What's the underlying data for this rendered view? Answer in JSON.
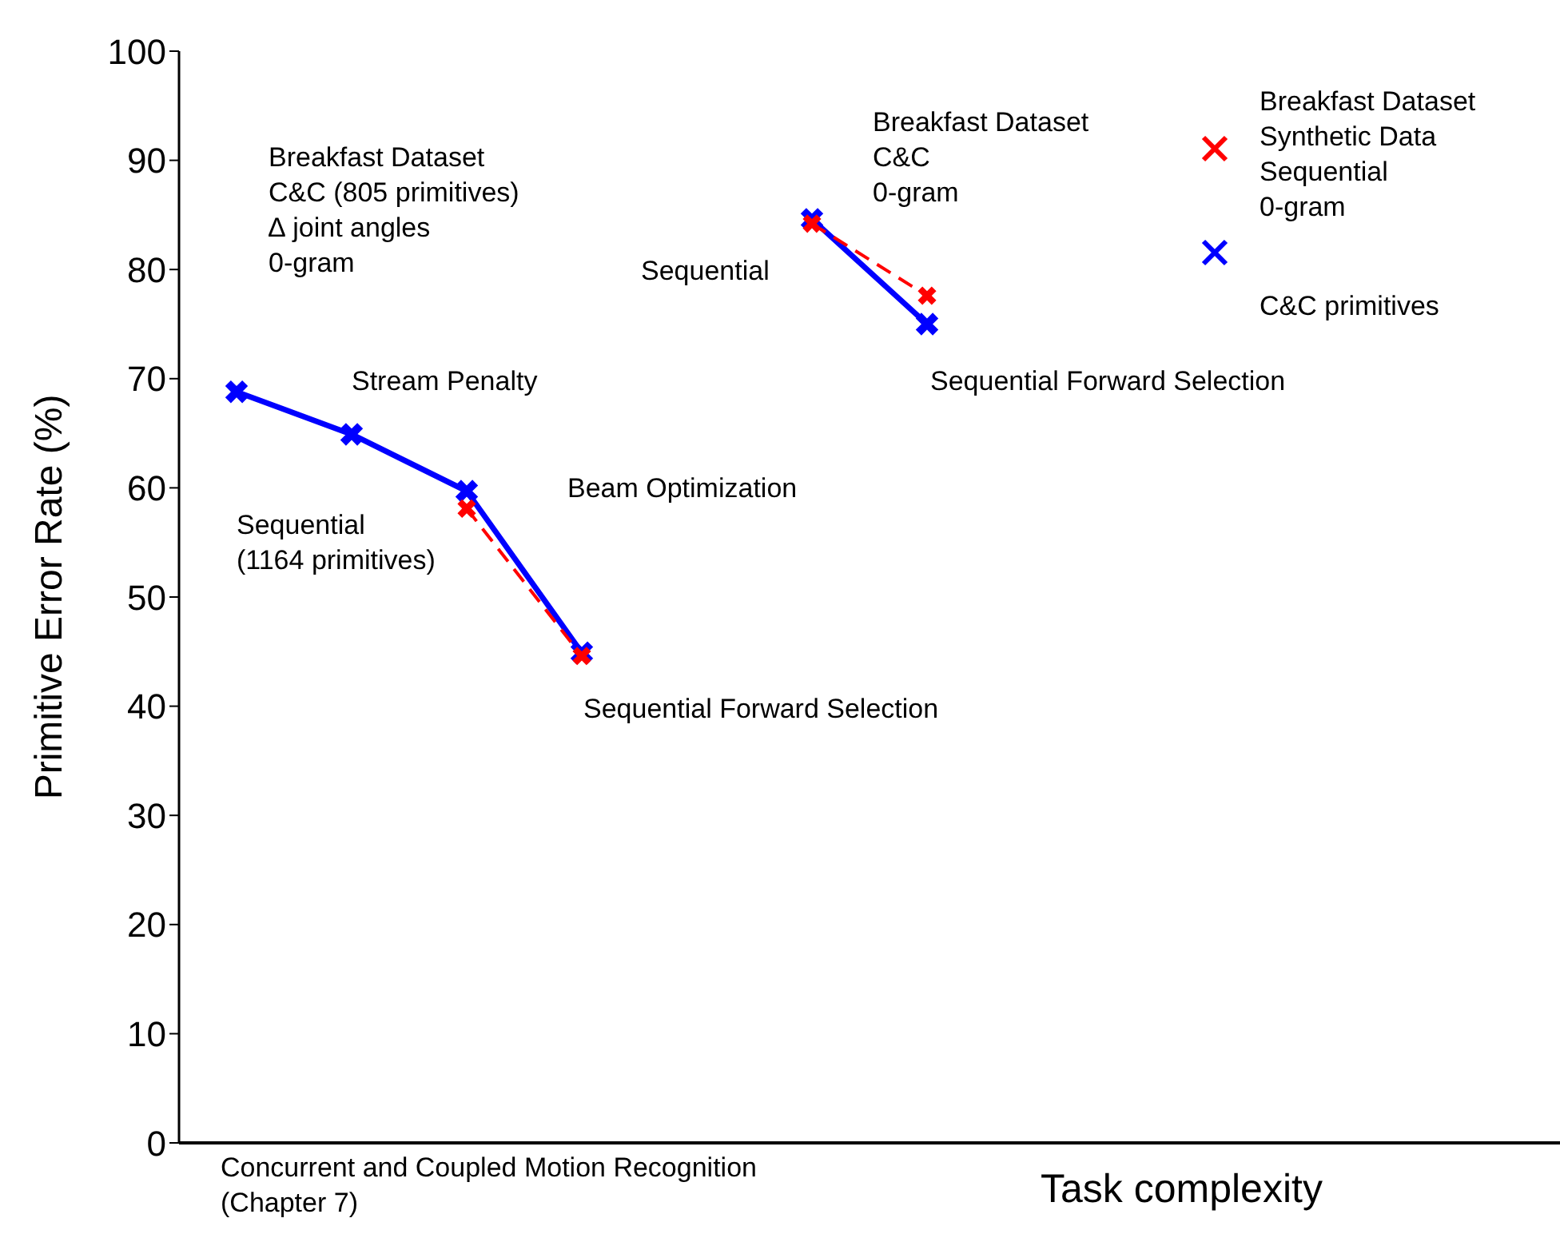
{
  "chart_data": {
    "type": "line",
    "xlabel": "Task complexity",
    "ylabel": "Primitive Error Rate (%)",
    "categories": [
      null,
      null,
      null,
      null,
      null,
      null,
      null,
      null,
      null,
      null,
      null,
      null
    ],
    "series": [
      {
        "name": "C&C primitives",
        "color": "#0000ff",
        "marker": "cross",
        "line_style": "solid",
        "values": [
          68.8,
          64.9,
          59.7,
          44.9,
          null,
          84.6,
          75.0,
          null,
          null,
          null,
          null,
          null
        ]
      },
      {
        "name": "Breakfast Dataset\nSynthetic Data\nSequential\n0-gram",
        "color": "#ff0000",
        "marker": "cross",
        "line_style": "dashed",
        "values": [
          null,
          null,
          58.1,
          44.6,
          null,
          84.2,
          77.6,
          null,
          null,
          null,
          null,
          null
        ]
      }
    ],
    "ylim": [
      0,
      100
    ],
    "yticks": [
      0,
      10,
      20,
      30,
      40,
      50,
      60,
      70,
      80,
      90,
      100
    ],
    "legend": "top right",
    "annotations": [
      "Breakfast Dataset\nC&C (805 primitives)\n∆ joint angles\n0-gram",
      "Stream Penalty",
      "Beam Optimization",
      "Sequential\n(1164 primitives)",
      "Sequential Forward Selection",
      "Breakfast Dataset\nC&C\n0-gram",
      "Sequential",
      "Sequential Forward Selection",
      "Concurrent and Coupled Motion Recognition\n(Chapter 7)"
    ]
  }
}
